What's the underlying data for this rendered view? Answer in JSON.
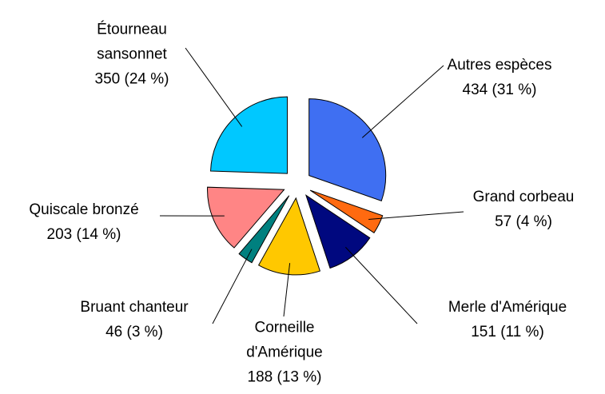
{
  "chart_data": {
    "type": "pie",
    "categories": [
      "Autres espèces",
      "Grand corbeau",
      "Merle d'Amérique",
      "Corneille d'Amérique",
      "Bruant chanteur",
      "Quiscale bronzé",
      "Étourneau sansonnet"
    ],
    "values": [
      434,
      57,
      151,
      188,
      46,
      203,
      350
    ],
    "value_labels": [
      "434 (31 %)",
      "57 (4 %)",
      "151 (11 %)",
      "188 (13 %)",
      "46 (3 %)",
      "203 (14 %)",
      "350 (24 %)"
    ],
    "colors": [
      "#3f6ff2",
      "#ff6a10",
      "#00087f",
      "#ffc800",
      "#00807f",
      "#ff8585",
      "#00c8ff"
    ]
  }
}
